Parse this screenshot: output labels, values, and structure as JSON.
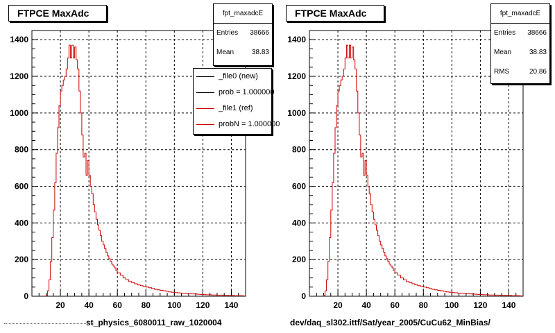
{
  "chart_data": [
    {
      "type": "histogram",
      "title": "FTPCE MaxAdc",
      "xlabel": "st_physics_6080011_raw_1020004",
      "ylabel": "",
      "xlim": [
        0,
        150
      ],
      "ylim": [
        0,
        1450
      ],
      "x_ticks": [
        20,
        40,
        60,
        80,
        100,
        120,
        140
      ],
      "y_ticks": [
        0,
        200,
        400,
        600,
        800,
        1000,
        1200,
        1400
      ],
      "grid": true,
      "stats": {
        "name": "fpt_maxadcE",
        "rows": [
          {
            "label": "Entries",
            "value": "38666"
          },
          {
            "label": "Mean",
            "value": "38.83"
          }
        ]
      },
      "legend": {
        "placement": "top-right",
        "entries": [
          {
            "label": "_file0 (new)",
            "color": "#000000"
          },
          {
            "label": "prob = 1.000000",
            "color": "#000000"
          },
          {
            "label": "_file1 (ref)",
            "color": "#cc0000"
          },
          {
            "label": "probN = 1.000000",
            "color": "#cc0000"
          }
        ]
      },
      "series": [
        {
          "color": "#cc0000",
          "x": [
            10,
            11,
            12,
            13,
            14,
            15,
            16,
            17,
            18,
            19,
            20,
            21,
            22,
            23,
            24,
            25,
            26,
            27,
            28,
            29,
            30,
            31,
            32,
            33,
            34,
            35,
            36,
            37,
            38,
            39,
            40,
            41,
            42,
            43,
            44,
            45,
            46,
            47,
            48,
            49,
            50,
            51,
            52,
            53,
            54,
            55,
            56,
            57,
            58,
            59,
            60,
            62,
            64,
            66,
            68,
            70,
            72,
            74,
            76,
            78,
            80,
            82,
            84,
            86,
            88,
            90,
            92,
            94,
            96,
            98,
            100,
            102,
            104,
            106,
            108,
            110,
            112,
            114,
            116,
            118,
            120,
            122,
            124,
            126,
            128,
            130,
            132,
            134,
            136,
            138,
            140,
            142,
            144,
            146,
            148
          ],
          "values": [
            5,
            30,
            90,
            190,
            320,
            470,
            620,
            780,
            920,
            1040,
            1120,
            1150,
            1180,
            1200,
            1240,
            1300,
            1370,
            1300,
            1370,
            1300,
            1360,
            1290,
            1240,
            1120,
            1000,
            880,
            760,
            780,
            660,
            740,
            660,
            600,
            560,
            500,
            460,
            420,
            390,
            360,
            330,
            300,
            280,
            260,
            240,
            220,
            205,
            190,
            175,
            165,
            155,
            140,
            128,
            115,
            100,
            90,
            80,
            75,
            68,
            62,
            58,
            54,
            50,
            46,
            42,
            38,
            35,
            32,
            30,
            27,
            24,
            22,
            20,
            19,
            17,
            16,
            15,
            14,
            13,
            12,
            11,
            10,
            9,
            8,
            8,
            7,
            7,
            6,
            6,
            5,
            5,
            4,
            4,
            3,
            3,
            3,
            2
          ]
        }
      ]
    },
    {
      "type": "histogram",
      "title": "FTPCE MaxAdc",
      "xlabel": "dev/daq_sl302.ittf/Sat/year_2005/CuCu62_MinBias/",
      "ylabel": "",
      "xlim": [
        0,
        150
      ],
      "ylim": [
        0,
        1450
      ],
      "x_ticks": [
        20,
        40,
        60,
        80,
        100,
        120,
        140
      ],
      "y_ticks": [
        0,
        200,
        400,
        600,
        800,
        1000,
        1200,
        1400
      ],
      "grid": true,
      "stats": {
        "name": "fpt_maxadcE",
        "rows": [
          {
            "label": "Entries",
            "value": "38666"
          },
          {
            "label": "Mean",
            "value": "38.83"
          },
          {
            "label": "RMS",
            "value": "20.86"
          }
        ]
      },
      "series": [
        {
          "color": "#cc0000",
          "x": [
            10,
            11,
            12,
            13,
            14,
            15,
            16,
            17,
            18,
            19,
            20,
            21,
            22,
            23,
            24,
            25,
            26,
            27,
            28,
            29,
            30,
            31,
            32,
            33,
            34,
            35,
            36,
            37,
            38,
            39,
            40,
            41,
            42,
            43,
            44,
            45,
            46,
            47,
            48,
            49,
            50,
            51,
            52,
            53,
            54,
            55,
            56,
            57,
            58,
            59,
            60,
            62,
            64,
            66,
            68,
            70,
            72,
            74,
            76,
            78,
            80,
            82,
            84,
            86,
            88,
            90,
            92,
            94,
            96,
            98,
            100,
            102,
            104,
            106,
            108,
            110,
            112,
            114,
            116,
            118,
            120,
            122,
            124,
            126,
            128,
            130,
            132,
            134,
            136,
            138,
            140,
            142,
            144,
            146,
            148
          ],
          "values": [
            5,
            30,
            90,
            190,
            320,
            470,
            620,
            780,
            920,
            1040,
            1120,
            1150,
            1180,
            1200,
            1240,
            1300,
            1370,
            1300,
            1370,
            1300,
            1360,
            1290,
            1240,
            1120,
            1000,
            880,
            760,
            780,
            660,
            740,
            660,
            600,
            560,
            500,
            460,
            420,
            390,
            360,
            330,
            300,
            280,
            260,
            240,
            220,
            205,
            190,
            175,
            165,
            155,
            140,
            128,
            115,
            100,
            90,
            80,
            75,
            68,
            62,
            58,
            54,
            50,
            46,
            42,
            38,
            35,
            32,
            30,
            27,
            24,
            22,
            20,
            19,
            17,
            16,
            15,
            14,
            13,
            12,
            11,
            10,
            9,
            8,
            8,
            7,
            7,
            6,
            6,
            5,
            5,
            4,
            4,
            3,
            3,
            3,
            2
          ]
        }
      ]
    }
  ]
}
